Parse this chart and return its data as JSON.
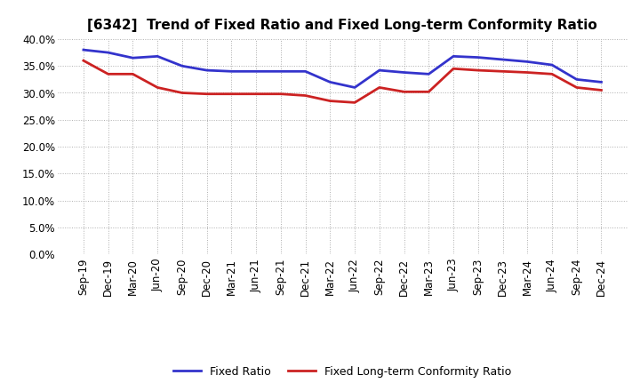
{
  "title": "[6342]  Trend of Fixed Ratio and Fixed Long-term Conformity Ratio",
  "x_labels": [
    "Sep-19",
    "Dec-19",
    "Mar-20",
    "Jun-20",
    "Sep-20",
    "Dec-20",
    "Mar-21",
    "Jun-21",
    "Sep-21",
    "Dec-21",
    "Mar-22",
    "Jun-22",
    "Sep-22",
    "Dec-22",
    "Mar-23",
    "Jun-23",
    "Sep-23",
    "Dec-23",
    "Mar-24",
    "Jun-24",
    "Sep-24",
    "Dec-24"
  ],
  "fixed_ratio": [
    38.0,
    37.5,
    36.5,
    36.8,
    35.0,
    34.2,
    34.0,
    34.0,
    34.0,
    34.0,
    32.0,
    31.0,
    34.2,
    33.8,
    33.5,
    36.8,
    36.6,
    36.2,
    35.8,
    35.2,
    32.5,
    32.0
  ],
  "fixed_lt_ratio": [
    36.0,
    33.5,
    33.5,
    31.0,
    30.0,
    29.8,
    29.8,
    29.8,
    29.8,
    29.5,
    28.5,
    28.2,
    31.0,
    30.2,
    30.2,
    34.5,
    34.2,
    34.0,
    33.8,
    33.5,
    31.0,
    30.5
  ],
  "ylim": [
    0,
    40
  ],
  "yticks": [
    0.0,
    5.0,
    10.0,
    15.0,
    20.0,
    25.0,
    30.0,
    35.0,
    40.0
  ],
  "fixed_ratio_color": "#3333CC",
  "fixed_lt_ratio_color": "#CC2222",
  "background_color": "#FFFFFF",
  "grid_color": "#999999",
  "legend_labels": [
    "Fixed Ratio",
    "Fixed Long-term Conformity Ratio"
  ],
  "title_fontsize": 11
}
